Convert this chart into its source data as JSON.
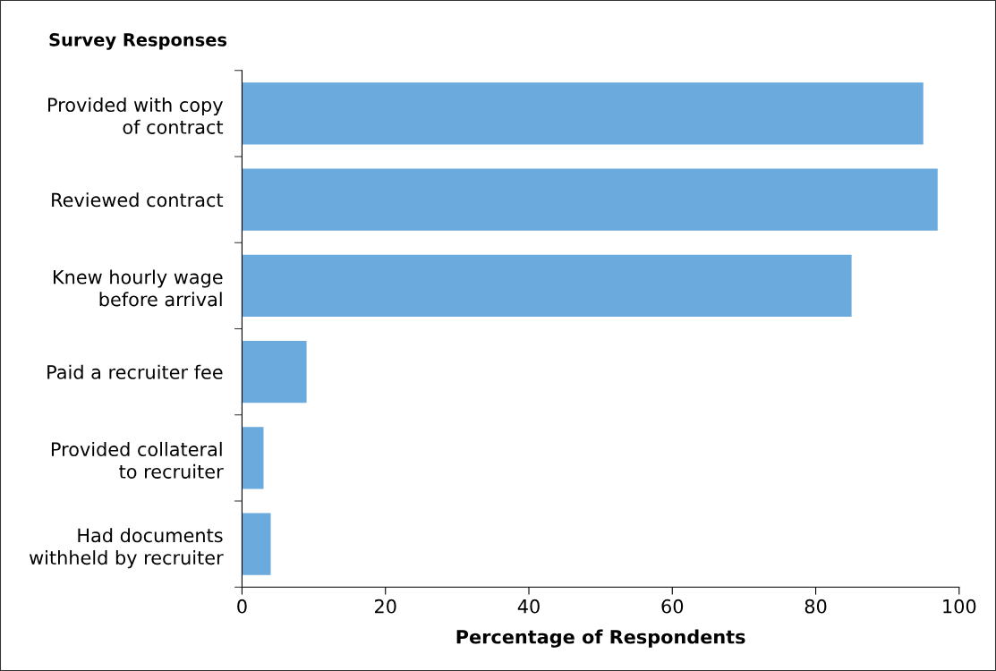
{
  "chart_data": {
    "type": "bar",
    "orientation": "horizontal",
    "ylabel": "Survey Responses",
    "xlabel": "Percentage of Respondents",
    "categories": [
      "Provided with copy\nof contract",
      "Reviewed contract",
      "Knew hourly wage\nbefore arrival",
      "Paid a recruiter fee",
      "Provided collateral\nto recruiter",
      "Had documents\nwithheld by recruiter"
    ],
    "values": [
      95,
      97,
      85,
      9,
      3,
      4
    ],
    "color": "#6aaadd",
    "xlim": [
      0,
      100
    ],
    "xticks": [
      0,
      20,
      40,
      60,
      80,
      100
    ],
    "grid": false,
    "legend": false
  }
}
